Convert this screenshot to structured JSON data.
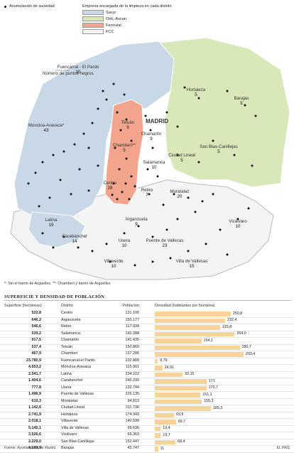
{
  "legend": {
    "points_label": "Acumulación de suciedad",
    "companies_title": "Empresa encargada de la limpieza en cada distrito",
    "companies": [
      {
        "name": "Sacyr",
        "color": "#c8d8e6"
      },
      {
        "name": "OHL-Ascan",
        "color": "#d9e8b8"
      },
      {
        "name": "Ferrovial",
        "color": "#f2a58c"
      },
      {
        "name": "FCC",
        "color": "#f4f4f4"
      }
    ]
  },
  "map": {
    "city_label": "MADRID",
    "count_label": "Número de puntos negros",
    "districts": [
      {
        "name": "Fuencarral - El Pardo",
        "count": "30",
        "company": "Sacyr"
      },
      {
        "name": "Moncloa-Aravaca*",
        "count": "43",
        "company": "Sacyr"
      },
      {
        "name": "Tetuán",
        "count": "9",
        "company": "Ferrovial"
      },
      {
        "name": "Chamartín",
        "count": "9",
        "company": "FCC"
      },
      {
        "name": "Chamberí**",
        "count": "5",
        "company": "Ferrovial"
      },
      {
        "name": "Salamanca",
        "count": "10",
        "company": "FCC"
      },
      {
        "name": "Centro",
        "count": "28",
        "company": "Ferrovial"
      },
      {
        "name": "Retiro",
        "count": "7",
        "company": "FCC"
      },
      {
        "name": "Hortaleza",
        "count": "5",
        "company": "OHL-Ascan"
      },
      {
        "name": "Barajas",
        "count": "5",
        "company": "OHL-Ascan"
      },
      {
        "name": "San Blas-Canillejas",
        "count": "5",
        "company": "OHL-Ascan"
      },
      {
        "name": "Ciudad Lineal",
        "count": "5",
        "company": "OHL-Ascan"
      },
      {
        "name": "Moratalaz",
        "count": "20",
        "company": "FCC"
      },
      {
        "name": "Latina",
        "count": "19",
        "company": "Sacyr"
      },
      {
        "name": "Arganzuela",
        "count": "9",
        "company": "FCC"
      },
      {
        "name": "Vicálvaro",
        "count": "10",
        "company": "FCC"
      },
      {
        "name": "Carabanchel",
        "count": "14",
        "company": "FCC"
      },
      {
        "name": "Usera",
        "count": "10",
        "company": "FCC"
      },
      {
        "name": "Puente de Vallecas",
        "count": "23",
        "company": "FCC"
      },
      {
        "name": "Villaverde",
        "count": "10",
        "company": "FCC"
      },
      {
        "name": "Villa de Vallecas",
        "count": "15",
        "company": "FCC"
      }
    ]
  },
  "notes": "*: Sin el barrio de Argüelles. **: Chamberí y barrio de Argüelles",
  "table": {
    "title": "SUPERFICIE Y DENSIDAD DE POBLACIÓN",
    "headers": {
      "area": "Superficie (hectáreas)",
      "district": "Distrito",
      "population": "Población",
      "density": "Densidad (habitantes por hectárea)"
    },
    "bar_color": "#f7d39a",
    "rows": [
      {
        "area": "522,8",
        "district": "Centro",
        "population": "131.106",
        "density": 250.8,
        "density_label": "250,8"
      },
      {
        "area": "646,2",
        "district": "Arganzuela",
        "population": "150.177",
        "density": 232.4,
        "density_label": "232,4"
      },
      {
        "area": "546,6",
        "district": "Retiro",
        "population": "117.934",
        "density": 215.8,
        "density_label": "215,8"
      },
      {
        "area": "539,2",
        "district": "Salamanca",
        "population": "142.388",
        "density": 264.0,
        "density_label": "264,0"
      },
      {
        "area": "917,5",
        "district": "Chamartín",
        "population": "141.435",
        "density": 154.1,
        "density_label": "154,1"
      },
      {
        "area": "537,4",
        "district": "Tetuán",
        "population": "150.860",
        "density": 280.7,
        "density_label": "280,7"
      },
      {
        "area": "467,9",
        "district": "Chamberí",
        "population": "137.286",
        "density": 293.4,
        "density_label": "293,4"
      },
      {
        "area": "23.780,9",
        "district": "Fuencarral-el Pardo",
        "population": "232.889",
        "density": 9.79,
        "density_label": "9,79"
      },
      {
        "area": "4.653,2",
        "district": "Moncloa-Aravaca",
        "population": "115.901",
        "density": 24.91,
        "density_label": "24,91"
      },
      {
        "area": "2.541,7",
        "district": "Latina",
        "population": "234.222",
        "density": 92.15,
        "density_label": "92,15"
      },
      {
        "area": "1.404,6",
        "district": "Carabanchel",
        "population": "240.230",
        "density": 171,
        "density_label": "171"
      },
      {
        "area": "777,8",
        "district": "Usera",
        "population": "132.744",
        "density": 170.7,
        "density_label": "170,7"
      },
      {
        "area": "1.496,9",
        "district": "Puente de Vallecas",
        "population": "226.135",
        "density": 151.1,
        "density_label": "151,1"
      },
      {
        "area": "610,3",
        "district": "Moratalaz",
        "population": "94.813",
        "density": 155.3,
        "density_label": "155,3"
      },
      {
        "area": "1.142,6",
        "district": "Ciudad Lineal",
        "population": "211.736",
        "density": 185.3,
        "density_label": "185,3"
      },
      {
        "area": "2.741,9",
        "district": "Hortaleza",
        "population": "174.343",
        "density": 63.6,
        "density_label": "63,6"
      },
      {
        "area": "2.018,1",
        "district": "Villaverde",
        "population": "140.599",
        "density": 69.7,
        "density_label": "69,7"
      },
      {
        "area": "5.145,1",
        "district": "Villa de Vallecas",
        "population": "99.636",
        "density": 19.4,
        "density_label": "19,4"
      },
      {
        "area": "3.526,6",
        "district": "Vicálvaro",
        "population": "69.363",
        "density": 19.7,
        "density_label": "19,7"
      },
      {
        "area": "2.229,0",
        "district": "San Blas-Canillejas",
        "population": "152.447",
        "density": 68.4,
        "density_label": "68,4"
      },
      {
        "area": "4.189,9",
        "district": "Barajas",
        "population": "45.747",
        "density": 11,
        "density_label": "11"
      }
    ]
  },
  "footer": {
    "source": "Fuente: Ayuntamiento de Madrid.",
    "credit": "EL PAÍS"
  }
}
